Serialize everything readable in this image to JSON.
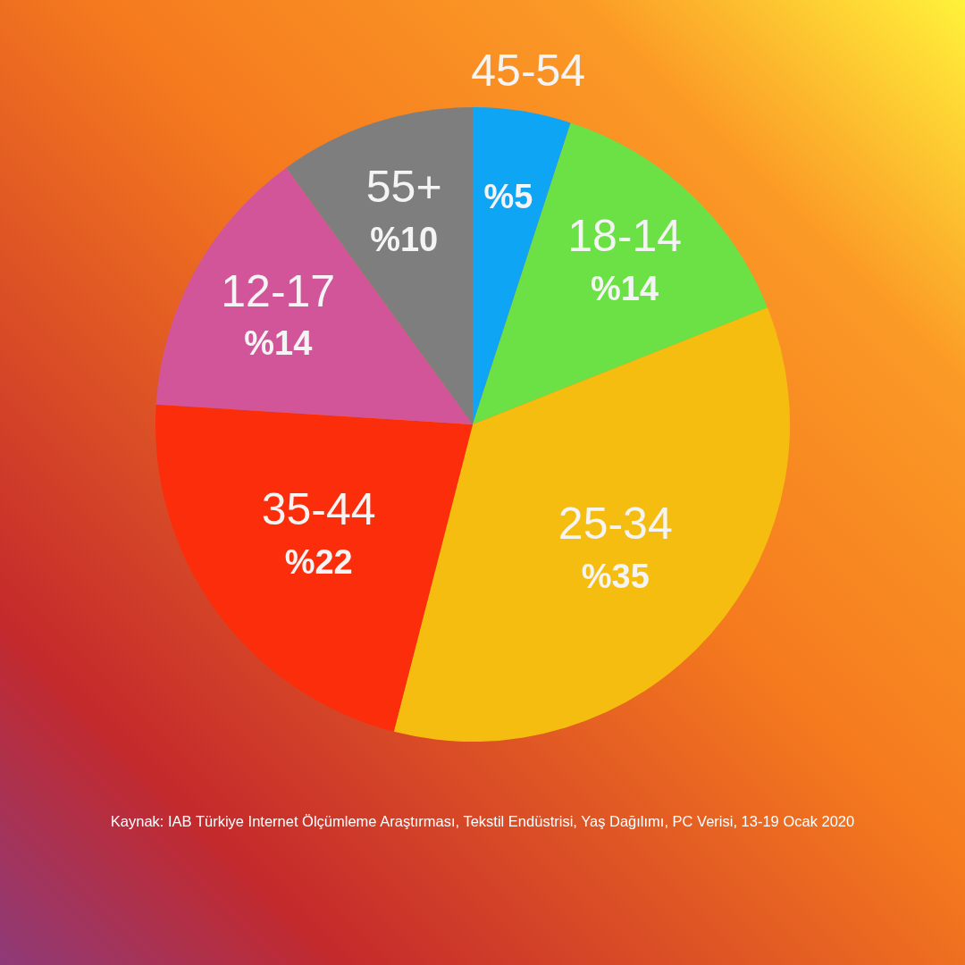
{
  "chart_data": {
    "type": "pie",
    "categories": [
      "45-54",
      "18-14",
      "25-34",
      "35-44",
      "12-17",
      "55+"
    ],
    "values": [
      5,
      14,
      35,
      22,
      14,
      10
    ],
    "colors": [
      "#0ea5f5",
      "#6ce146",
      "#f5bd10",
      "#fb2d0b",
      "#d2559a",
      "#7e7e7e"
    ],
    "value_labels": [
      "%5",
      "%14",
      "%35",
      "%22",
      "%14",
      "%10"
    ],
    "annotations": [
      "Kaynak: IAB Türkiye Internet Ölçümleme Araştırması, Tekstil Endüstrisi, Yaş Dağılımı, PC Verisi, 13-19 Ocak 2020"
    ]
  }
}
